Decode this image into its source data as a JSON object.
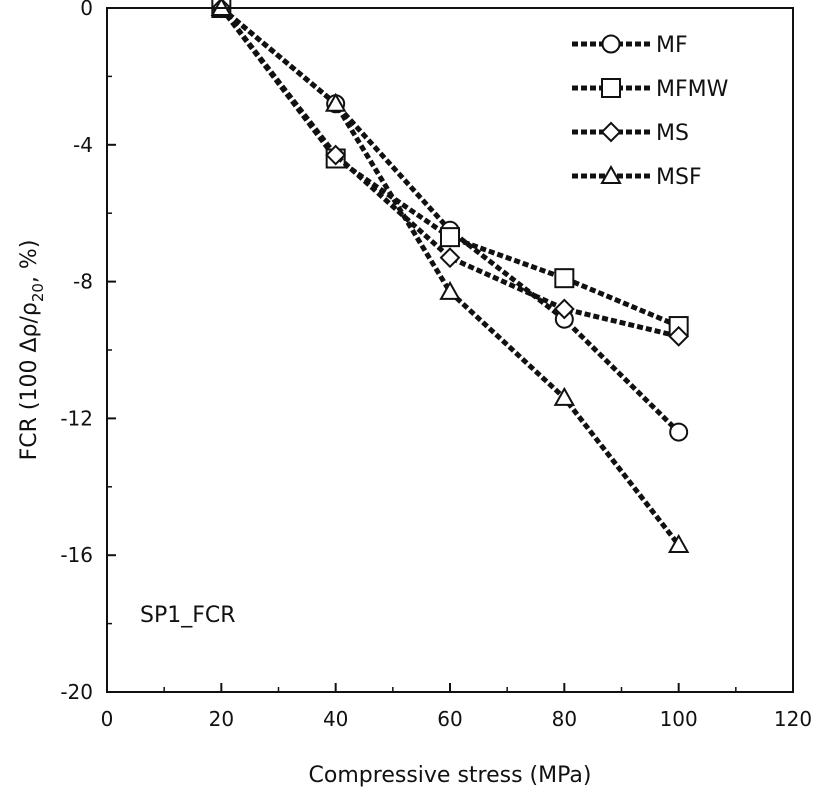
{
  "chart_data": {
    "type": "line",
    "xlabel": "Compressive stress (MPa)",
    "ylabel": {
      "prefix": "FCR (100 Δρ/ρ",
      "subscript": "20",
      "suffix": ", %)"
    },
    "xlim": [
      0,
      120
    ],
    "ylim": [
      -20,
      0
    ],
    "x_ticks": [
      0,
      20,
      40,
      60,
      80,
      100,
      120
    ],
    "y_ticks": [
      0,
      -4,
      -8,
      -12,
      -16,
      -20
    ],
    "annotation": "SP1_FCR",
    "legend_position": "top-right",
    "grid": false,
    "line_style": "dashed",
    "line_color": "#111111",
    "series": [
      {
        "name": "MF",
        "marker": "circle",
        "x": [
          20,
          40,
          60,
          80,
          100
        ],
        "y": [
          0,
          -2.8,
          -6.5,
          -9.1,
          -12.4
        ]
      },
      {
        "name": "MFMW",
        "marker": "square",
        "x": [
          20,
          40,
          60,
          80,
          100
        ],
        "y": [
          0,
          -4.4,
          -6.7,
          -7.9,
          -9.3
        ]
      },
      {
        "name": "MS",
        "marker": "diamond",
        "x": [
          20,
          40,
          60,
          80,
          100
        ],
        "y": [
          0,
          -4.3,
          -7.3,
          -8.8,
          -9.6
        ]
      },
      {
        "name": "MSF",
        "marker": "triangle",
        "x": [
          20,
          40,
          60,
          80,
          100
        ],
        "y": [
          0,
          -2.8,
          -8.3,
          -11.4,
          -15.7
        ]
      }
    ]
  }
}
